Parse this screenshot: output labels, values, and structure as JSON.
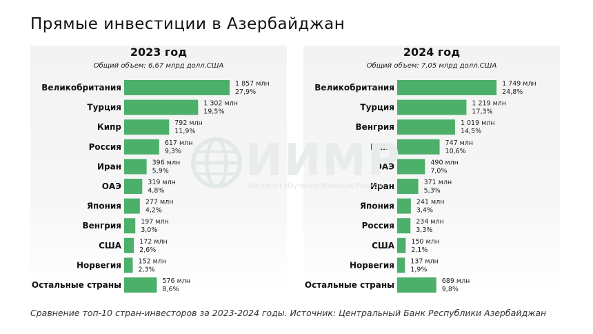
{
  "title": "Прямые инвестиции в Азербайджан",
  "footer": "Сравнение топ-10 стран-инвесторов за 2023-2024 годы. Источник: Центральный Банк Республики Азербайджан",
  "watermark": {
    "text": "ИИМР",
    "subtitle": "Институт Изучения Мировых Рынков"
  },
  "colors": {
    "bar": "#4caf6a",
    "panel_bg": "#f4f4f4",
    "watermark": "#e8ecea"
  },
  "chart_data": [
    {
      "type": "bar",
      "orientation": "horizontal",
      "title": "2023 год",
      "subtitle": "Общий объем: 6,67 млрд долл.США",
      "categories": [
        "Великобритания",
        "Турция",
        "Кипр",
        "Россия",
        "Иран",
        "ОАЭ",
        "Япония",
        "Венгрия",
        "США",
        "Норвегия",
        "Остальные страны"
      ],
      "values": [
        1857,
        1302,
        792,
        617,
        396,
        319,
        277,
        197,
        172,
        152,
        576
      ],
      "value_labels": [
        "1 857 млн",
        "1 302 млн",
        "792 млн",
        "617 млн",
        "396 млн",
        "319 млн",
        "277 млн",
        "197 млн",
        "172 млн",
        "152 млн",
        "576 млн"
      ],
      "share_labels": [
        "27,9%",
        "19,5%",
        "11,9%",
        "9,3%",
        "5,9%",
        "4,8%",
        "4,2%",
        "3,0%",
        "2,6%",
        "2,3%",
        "8,6%"
      ]
    },
    {
      "type": "bar",
      "orientation": "horizontal",
      "title": "2024 год",
      "subtitle": "Общий объем: 7,05 млрд долл.США",
      "categories": [
        "Великобритания",
        "Турция",
        "Венгрия",
        "Кипр",
        "ОАЭ",
        "Иран",
        "Япония",
        "Россия",
        "США",
        "Норвегия",
        "Остальные страны"
      ],
      "values": [
        1749,
        1219,
        1019,
        747,
        490,
        371,
        241,
        234,
        150,
        137,
        689
      ],
      "value_labels": [
        "1 749 млн",
        "1 219 млн",
        "1 019 млн",
        "747 млн",
        "490 млн",
        "371 млн",
        "241 млн",
        "234 млн",
        "150 млн",
        "137 млн",
        "689 млн"
      ],
      "share_labels": [
        "24,8%",
        "17,3%",
        "14,5%",
        "10,6%",
        "7,0%",
        "5,3%",
        "3,4%",
        "3,3%",
        "2,1%",
        "1,9%",
        "9,8%"
      ]
    }
  ]
}
